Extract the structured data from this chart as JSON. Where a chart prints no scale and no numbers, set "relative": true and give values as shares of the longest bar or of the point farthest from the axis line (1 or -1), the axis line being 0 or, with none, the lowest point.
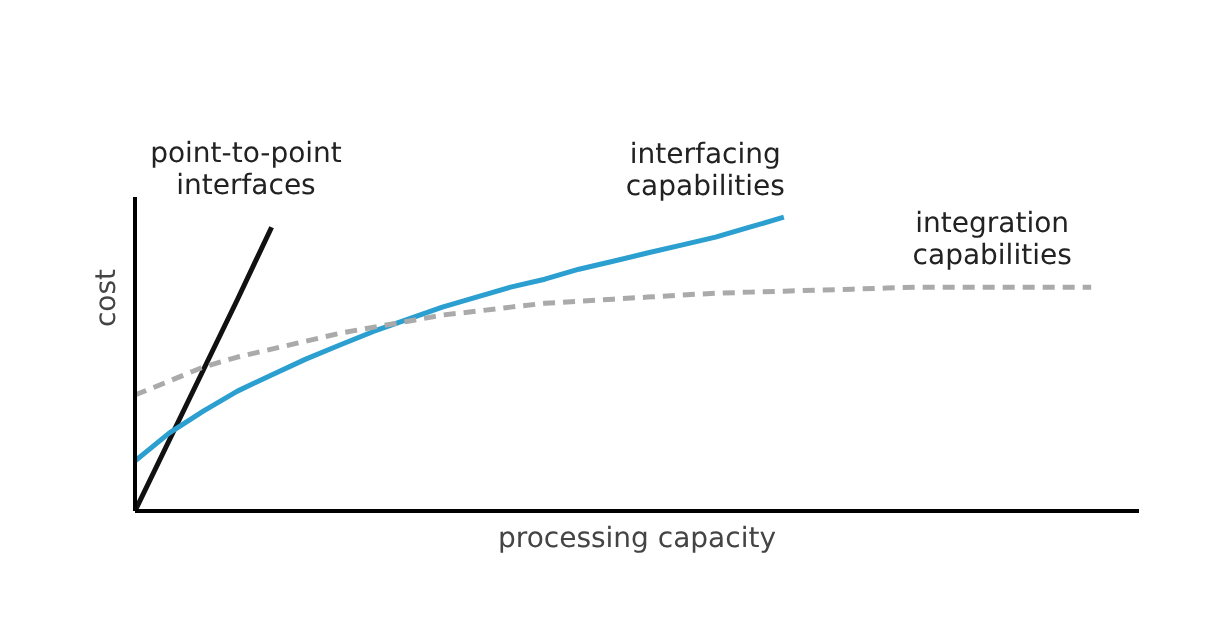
{
  "chart_data": {
    "type": "line",
    "relative": true,
    "xlabel": "processing capacity",
    "ylabel": "cost",
    "grid": false,
    "legend": false,
    "categories": [
      null,
      null,
      null,
      null,
      null,
      null,
      null,
      null,
      null,
      null,
      null,
      null,
      null,
      null,
      null,
      null,
      null,
      null,
      null,
      null,
      null,
      null,
      null,
      null,
      null,
      null,
      null,
      null,
      null
    ],
    "series": [
      {
        "name": "point-to-point\ninterfaces",
        "color": "#111111",
        "line_style": "solid",
        "values": [
          0,
          0.24,
          0.48,
          0.72,
          0.966,
          null,
          null,
          null,
          null,
          null,
          null,
          null,
          null,
          null,
          null,
          null,
          null,
          null,
          null,
          null,
          null,
          null,
          null,
          null,
          null,
          null,
          null,
          null,
          null
        ]
      },
      {
        "name": "interfacing\ncapabilities",
        "color": "#2a9fd0",
        "line_style": "solid",
        "values": [
          0.17,
          0.265,
          0.34,
          0.408,
          0.463,
          0.517,
          0.565,
          0.612,
          0.653,
          0.694,
          0.728,
          0.762,
          0.789,
          0.823,
          0.85,
          0.878,
          0.905,
          0.932,
          0.966,
          1.0,
          null,
          null,
          null,
          null,
          null,
          null,
          null,
          null,
          null
        ]
      },
      {
        "name": "integration\ncapabilities",
        "color": "#aaaaaa",
        "line_style": "dashed",
        "values": [
          0.395,
          0.442,
          0.49,
          0.524,
          0.551,
          0.578,
          0.605,
          0.626,
          0.646,
          0.667,
          0.68,
          0.694,
          0.707,
          0.714,
          0.721,
          0.728,
          0.735,
          0.741,
          0.745,
          0.748,
          0.752,
          0.755,
          0.759,
          0.762,
          0.762,
          0.762,
          0.762,
          0.762,
          0.762
        ]
      }
    ]
  }
}
